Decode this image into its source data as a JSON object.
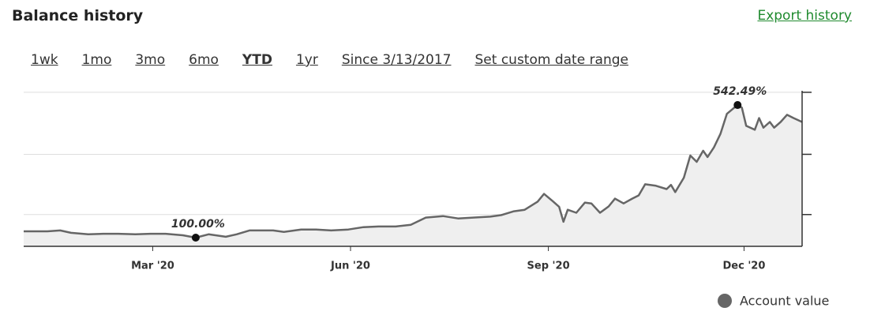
{
  "title": "Balance history",
  "export_link": "Export history",
  "ranges": [
    "1wk",
    "1mo",
    "3mo",
    "6mo",
    "YTD",
    "1yr",
    "Since 3/13/2017",
    "Set custom date range"
  ],
  "active_range": "YTD",
  "chart_data": {
    "type": "area",
    "series": [
      {
        "name": "Account value",
        "color": "#666666",
        "fill": "#efefef",
        "x": [
          0,
          11,
          17,
          22,
          30,
          37,
          44,
          52,
          59,
          66,
          74,
          80,
          86,
          94,
          99,
          105,
          110,
          116,
          121,
          129,
          136,
          143,
          151,
          158,
          165,
          173,
          180,
          187,
          195,
          202,
          209,
          217,
          222,
          228,
          233,
          239,
          242,
          246,
          249,
          251,
          253,
          257,
          261,
          264,
          268,
          272,
          275,
          279,
          283,
          286,
          289,
          294,
          299,
          301,
          303,
          307,
          310,
          313,
          316,
          318,
          321,
          324,
          327,
          330,
          332,
          334,
          336,
          340,
          342,
          344,
          347,
          349,
          352,
          355,
          358,
          362
        ],
        "values": [
          121,
          121,
          124,
          116,
          111,
          113,
          113,
          111,
          113,
          113,
          108,
          100,
          111,
          103,
          111,
          124,
          124,
          124,
          119,
          127,
          127,
          124,
          127,
          135,
          137,
          137,
          143,
          167,
          172,
          164,
          167,
          170,
          175,
          188,
          193,
          220,
          246,
          222,
          203,
          153,
          193,
          183,
          217,
          214,
          183,
          204,
          230,
          214,
          230,
          241,
          278,
          273,
          262,
          276,
          252,
          300,
          374,
          353,
          390,
          369,
          401,
          446,
          513,
          531,
          542.49,
          534,
          473,
          460,
          499,
          467,
          486,
          467,
          486,
          510,
          499,
          486
        ]
      }
    ],
    "annotations": [
      {
        "x": 80,
        "y": 100,
        "label": "100.00%"
      },
      {
        "x": 332,
        "y": 542.49,
        "label": "542.49%"
      }
    ],
    "xlim": [
      0,
      362
    ],
    "xticks": [
      {
        "value": 60,
        "label": "Mar '20"
      },
      {
        "value": 152,
        "label": "Jun '20"
      },
      {
        "value": 244,
        "label": "Sep '20"
      },
      {
        "value": 335,
        "label": "Dec '20"
      }
    ],
    "ylim": [
      71,
      590
    ],
    "yticks": [
      177,
      378,
      585
    ],
    "grid": true,
    "legend": "bottom-right"
  }
}
